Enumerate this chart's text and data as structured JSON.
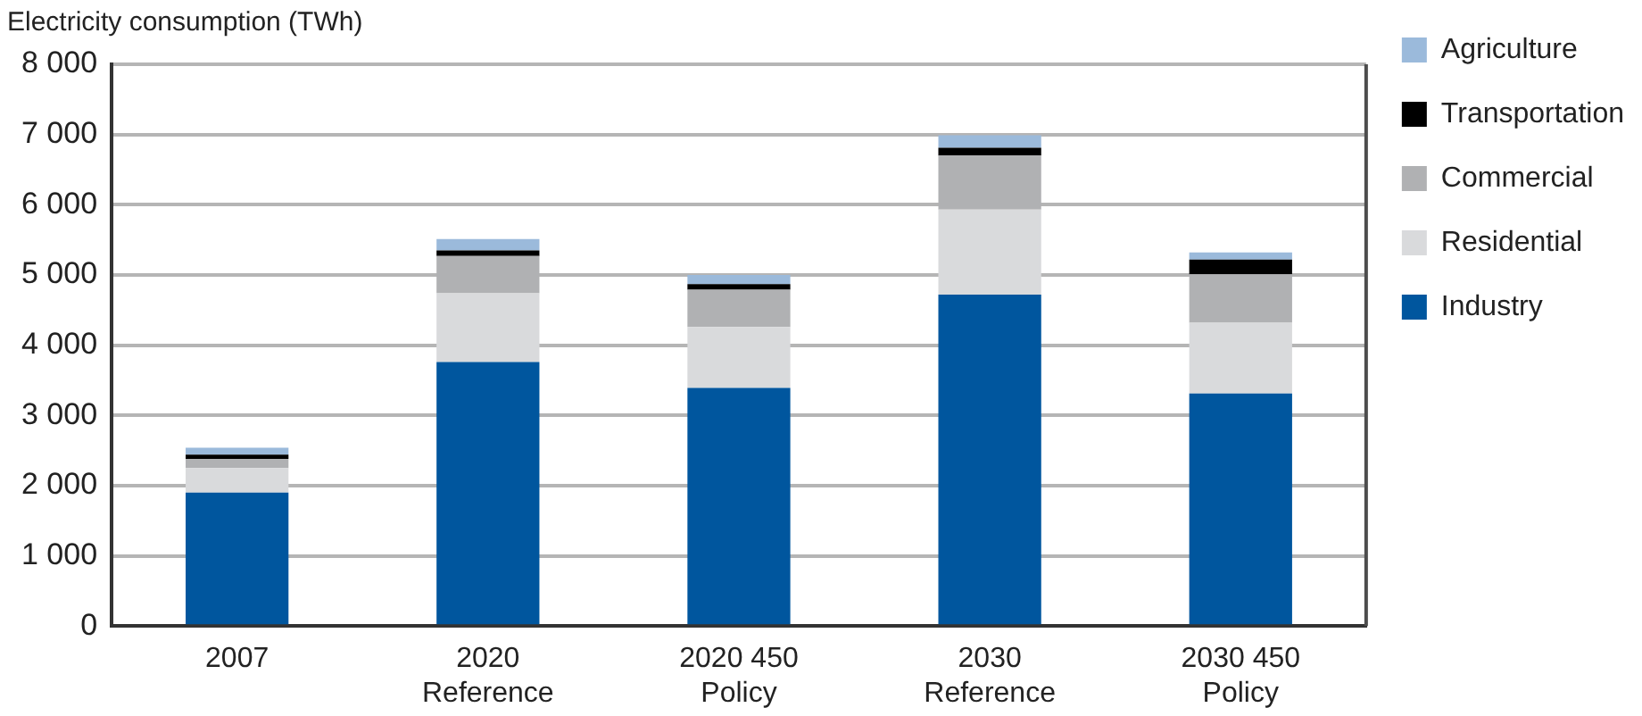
{
  "chart_data": {
    "type": "bar",
    "ylabel": "Electricity consumption (TWh)",
    "categories": [
      "2007",
      "2020 Reference",
      "2020 450 Policy",
      "2030 Reference",
      "2030 450 Policy"
    ],
    "stacked": true,
    "series": [
      {
        "name": "Industry",
        "color": "#00569e",
        "values": [
          1900,
          3760,
          3390,
          4720,
          3310
        ]
      },
      {
        "name": "Residential",
        "color": "#d9dadc",
        "values": [
          350,
          980,
          870,
          1210,
          1010
        ]
      },
      {
        "name": "Commercial",
        "color": "#b0b1b3",
        "values": [
          130,
          530,
          530,
          770,
          690
        ]
      },
      {
        "name": "Transportation",
        "color": "#000000",
        "values": [
          60,
          80,
          80,
          110,
          210
        ]
      },
      {
        "name": "Agriculture",
        "color": "#9bbadb",
        "values": [
          100,
          160,
          130,
          180,
          100
        ]
      }
    ],
    "ylim": [
      0,
      8000
    ],
    "yticks": [
      {
        "value": 0,
        "label": "0"
      },
      {
        "value": 1000,
        "label": "1 000"
      },
      {
        "value": 2000,
        "label": "2 000"
      },
      {
        "value": 3000,
        "label": "3 000"
      },
      {
        "value": 4000,
        "label": "4 000"
      },
      {
        "value": 5000,
        "label": "5 000"
      },
      {
        "value": 6000,
        "label": "6 000"
      },
      {
        "value": 7000,
        "label": "7 000"
      },
      {
        "value": 8000,
        "label": "8 000"
      }
    ],
    "grid": "y",
    "legend": "right"
  }
}
